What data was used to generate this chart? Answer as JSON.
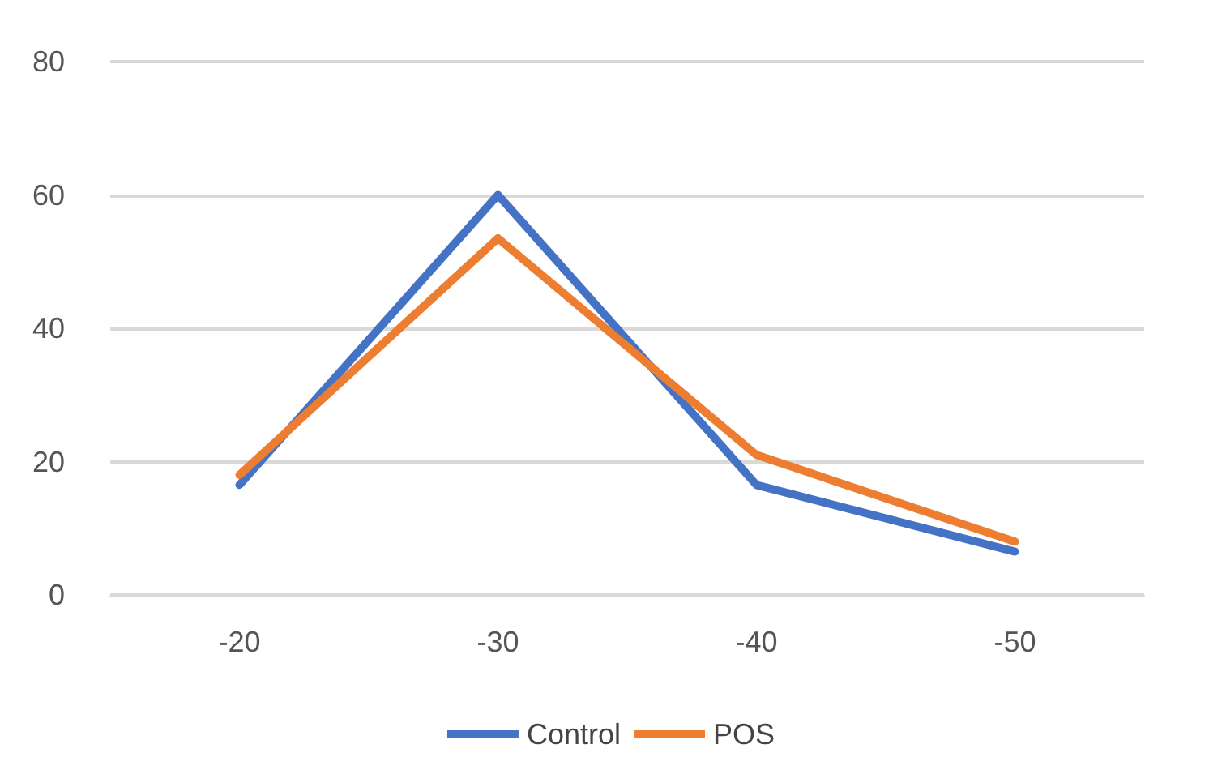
{
  "chart_data": {
    "type": "line",
    "categories": [
      "-20",
      "-30",
      "-40",
      "-50"
    ],
    "series": [
      {
        "name": "Control",
        "color": "#4472c4",
        "values": [
          16.5,
          60,
          16.5,
          6.5
        ]
      },
      {
        "name": "POS",
        "color": "#ed7d31",
        "values": [
          18,
          53.5,
          21,
          8
        ]
      }
    ],
    "ylim": [
      0,
      80
    ],
    "yticks": [
      0,
      20,
      40,
      60,
      80
    ],
    "grid": "y",
    "legend": "bottom",
    "marker": "none",
    "line_style": "solid"
  }
}
